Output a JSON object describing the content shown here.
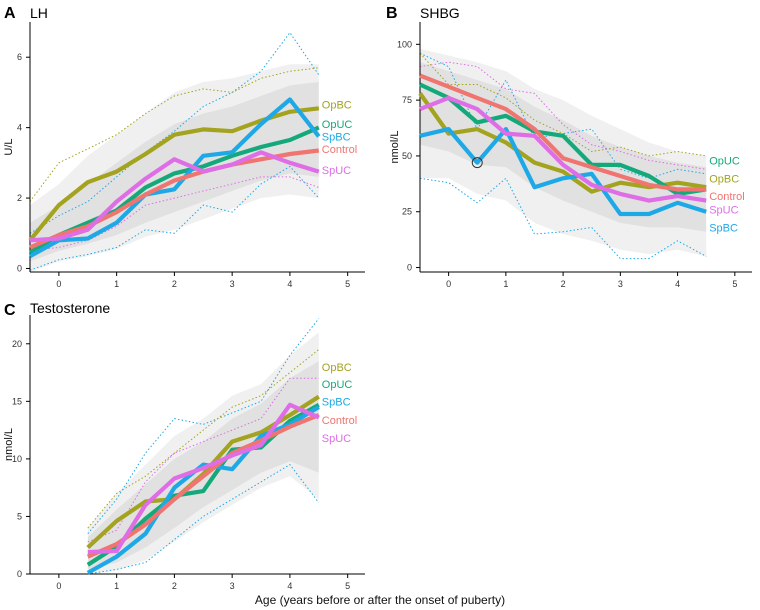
{
  "figure": {
    "xlabel": "Age (years before or after the onset of puberty)"
  },
  "colors": {
    "OpBC": "#a3a31f",
    "OpUC": "#14a97a",
    "SpBC": "#1ea9e6",
    "Control": "#f07470",
    "SpUC": "#de6de6"
  },
  "chart_data": [
    {
      "type": "line",
      "letter": "A",
      "title": "LH",
      "ylabel": "U/L",
      "xlim": [
        -0.5,
        5.3
      ],
      "ylim": [
        -0.1,
        7.0
      ],
      "xticks": [
        0,
        1,
        2,
        3,
        4,
        5
      ],
      "yticks": [
        0,
        2,
        4,
        6
      ],
      "x": [
        -0.5,
        0,
        0.5,
        1,
        1.5,
        2,
        2.5,
        3,
        3.5,
        4,
        4.5
      ],
      "series": [
        {
          "name": "OpBC",
          "values": [
            0.8,
            1.8,
            2.45,
            2.75,
            3.25,
            3.8,
            3.95,
            3.9,
            4.2,
            4.45,
            4.55
          ]
        },
        {
          "name": "OpUC",
          "values": [
            0.45,
            0.95,
            1.3,
            1.65,
            2.3,
            2.7,
            2.9,
            3.2,
            3.45,
            3.65,
            4.0
          ]
        },
        {
          "name": "SpBC",
          "values": [
            0.35,
            0.8,
            0.85,
            1.3,
            2.1,
            2.25,
            3.2,
            3.3,
            4.1,
            4.8,
            3.75
          ]
        },
        {
          "name": "Control",
          "values": [
            0.6,
            0.95,
            1.2,
            1.6,
            2.1,
            2.5,
            2.75,
            2.95,
            3.1,
            3.25,
            3.35
          ]
        },
        {
          "name": "SpUC",
          "values": [
            0.8,
            0.85,
            1.1,
            1.9,
            2.55,
            3.1,
            2.75,
            2.95,
            3.3,
            3.0,
            2.75
          ]
        }
      ],
      "labels": [
        {
          "name": "OpBC",
          "text": "OpBC",
          "y": 4.65
        },
        {
          "name": "OpUC",
          "text": "OpUC",
          "y": 4.1
        },
        {
          "name": "SpBC",
          "text": "SpBC",
          "y": 3.75
        },
        {
          "name": "Control",
          "text": "Control",
          "y": 3.4
        },
        {
          "name": "SpUC",
          "text": "SpUC",
          "y": 2.8
        }
      ],
      "band": {
        "outer_upper": [
          1.8,
          2.4,
          3.2,
          3.8,
          4.4,
          5.0,
          5.3,
          5.4,
          5.6,
          5.8,
          5.8
        ],
        "outer_lower": [
          -0.1,
          0.2,
          0.35,
          0.55,
          0.9,
          1.1,
          1.4,
          1.7,
          2.0,
          2.1,
          2.0
        ],
        "inner_upper": [
          1.3,
          1.8,
          2.4,
          3.0,
          3.6,
          4.1,
          4.4,
          4.6,
          4.9,
          5.2,
          5.3
        ],
        "inner_lower": [
          0.2,
          0.5,
          0.7,
          0.95,
          1.3,
          1.6,
          1.9,
          2.2,
          2.5,
          2.7,
          2.6
        ],
        "dotted": [
          {
            "name": "OpBC",
            "values": [
              1.9,
              3.0,
              3.4,
              3.8,
              4.4,
              4.9,
              5.1,
              5.0,
              5.4,
              5.6,
              5.7
            ]
          },
          {
            "name": "SpBC",
            "values": [
              1.0,
              1.5,
              1.9,
              2.6,
              3.3,
              3.9,
              4.6,
              5.0,
              5.6,
              6.7,
              5.5
            ]
          },
          {
            "name": "SpBC",
            "values": [
              -0.05,
              0.25,
              0.4,
              0.6,
              1.1,
              1.0,
              1.8,
              1.6,
              2.4,
              2.9,
              2.0
            ]
          },
          {
            "name": "SpUC",
            "values": [
              0.5,
              0.6,
              0.8,
              1.2,
              1.8,
              2.0,
              2.2,
              2.4,
              2.6,
              2.6,
              2.3
            ]
          }
        ]
      }
    },
    {
      "type": "line",
      "letter": "B",
      "title": "SHBG",
      "ylabel": "nmol/L",
      "xlim": [
        -0.5,
        5.3
      ],
      "ylim": [
        -2,
        110
      ],
      "xticks": [
        0,
        1,
        2,
        3,
        4,
        5
      ],
      "yticks": [
        0,
        25,
        50,
        75,
        100
      ],
      "x": [
        -0.5,
        0,
        0.5,
        1,
        1.5,
        2,
        2.5,
        3,
        3.5,
        4,
        4.5
      ],
      "series": [
        {
          "name": "OpBC",
          "values": [
            78,
            60,
            62,
            56,
            47,
            43,
            34,
            38,
            36,
            38,
            36
          ]
        },
        {
          "name": "OpUC",
          "values": [
            82,
            76,
            65,
            68,
            61,
            59,
            46,
            46,
            41,
            33,
            35
          ]
        },
        {
          "name": "SpBC",
          "values": [
            59,
            62,
            47,
            62,
            36,
            40,
            42,
            24,
            24,
            29,
            25
          ]
        },
        {
          "name": "Control",
          "values": [
            86,
            81,
            76,
            71,
            62,
            49,
            45,
            41,
            37,
            35,
            35
          ]
        },
        {
          "name": "SpUC",
          "values": [
            71,
            76,
            71,
            60,
            59,
            46,
            37,
            33,
            30,
            32,
            30
          ]
        }
      ],
      "labels": [
        {
          "name": "OpUC",
          "text": "OpUC",
          "y": 48
        },
        {
          "name": "OpBC",
          "text": "OpBC",
          "y": 40
        },
        {
          "name": "Control",
          "text": "Control",
          "y": 32
        },
        {
          "name": "SpUC",
          "text": "SpUC",
          "y": 26
        },
        {
          "name": "SpBC",
          "text": "SpBC",
          "y": 18
        }
      ],
      "marker": {
        "x": 0.5,
        "y": 47
      },
      "band": {
        "outer_upper": [
          98,
          95,
          92,
          88,
          80,
          75,
          68,
          62,
          56,
          52,
          50
        ],
        "outer_lower": [
          40,
          40,
          33,
          30,
          20,
          15,
          12,
          8,
          6,
          8,
          5
        ],
        "inner_upper": [
          92,
          88,
          84,
          80,
          72,
          66,
          59,
          54,
          50,
          47,
          45
        ],
        "inner_lower": [
          55,
          52,
          46,
          45,
          36,
          30,
          25,
          20,
          18,
          18,
          16
        ],
        "dotted": [
          {
            "name": "SpBC",
            "values": [
              96,
              90,
              62,
              84,
              58,
              60,
              62,
              44,
              40,
              44,
              42
            ]
          },
          {
            "name": "SpBC",
            "values": [
              40,
              38,
              29,
              40,
              15,
              16,
              18,
              4,
              4,
              12,
              5
            ]
          },
          {
            "name": "OpBC",
            "values": [
              96,
              82,
              82,
              76,
              66,
              60,
              52,
              54,
              50,
              52,
              50
            ]
          },
          {
            "name": "SpUC",
            "values": [
              90,
              92,
              90,
              80,
              78,
              64,
              55,
              52,
              48,
              46,
              44
            ]
          }
        ]
      }
    },
    {
      "type": "line",
      "letter": "C",
      "title": "Testosterone",
      "ylabel": "nmol/L",
      "xlim": [
        -0.5,
        5.3
      ],
      "ylim": [
        0,
        22.5
      ],
      "xticks": [
        0,
        1,
        2,
        3,
        4,
        5
      ],
      "yticks": [
        0,
        5,
        10,
        15,
        20
      ],
      "x": [
        0.5,
        1,
        1.5,
        2,
        2.5,
        3,
        3.5,
        4,
        4.5
      ],
      "series": [
        {
          "name": "OpBC",
          "values": [
            2.3,
            4.6,
            6.3,
            6.5,
            8.7,
            11.5,
            12.3,
            13.8,
            15.4
          ]
        },
        {
          "name": "OpUC",
          "values": [
            0.8,
            2.4,
            4.8,
            6.8,
            7.2,
            10.8,
            11.0,
            13.3,
            14.7
          ]
        },
        {
          "name": "SpBC",
          "values": [
            0.1,
            1.5,
            3.5,
            7.5,
            9.5,
            9.1,
            12.0,
            13.0,
            14.5
          ]
        },
        {
          "name": "Control",
          "values": [
            1.5,
            2.6,
            4.3,
            6.5,
            8.5,
            10.5,
            11.6,
            12.8,
            13.8
          ]
        },
        {
          "name": "SpUC",
          "values": [
            1.9,
            2.0,
            6.0,
            8.3,
            9.2,
            10.3,
            11.2,
            14.7,
            13.6
          ]
        }
      ],
      "labels": [
        {
          "name": "OpBC",
          "text": "OpBC",
          "y": 18.0
        },
        {
          "name": "OpUC",
          "text": "OpUC",
          "y": 16.5
        },
        {
          "name": "SpBC",
          "text": "SpBC",
          "y": 15.0
        },
        {
          "name": "Control",
          "text": "Control",
          "y": 13.4
        },
        {
          "name": "SpUC",
          "text": "SpUC",
          "y": 11.8
        }
      ],
      "band": {
        "outer_upper": [
          4.0,
          7.0,
          9.5,
          12.0,
          13.5,
          15.5,
          16.5,
          19.0,
          21.0
        ],
        "outer_lower": [
          0.0,
          0.3,
          1.2,
          2.8,
          4.5,
          6.0,
          7.5,
          8.5,
          6.5
        ],
        "inner_upper": [
          3.2,
          5.6,
          7.8,
          10.0,
          11.5,
          13.5,
          14.8,
          17.0,
          18.5
        ],
        "inner_lower": [
          0.4,
          1.0,
          2.3,
          4.0,
          5.8,
          7.3,
          8.8,
          9.8,
          8.8
        ],
        "dotted": [
          {
            "name": "SpBC",
            "values": [
              3.5,
              6.5,
              10.5,
              13.5,
              13.0,
              14.0,
              15.0,
              19.0,
              22.2
            ]
          },
          {
            "name": "SpBC",
            "values": [
              0.0,
              0.4,
              1.0,
              3.0,
              5.0,
              6.5,
              8.0,
              9.5,
              6.2
            ]
          },
          {
            "name": "OpBC",
            "values": [
              4.0,
              7.0,
              8.5,
              10.5,
              12.5,
              14.5,
              15.5,
              17.5,
              19.5
            ]
          },
          {
            "name": "SpUC",
            "values": [
              2.8,
              3.8,
              8.0,
              10.5,
              11.5,
              12.5,
              13.5,
              17.0,
              17.0
            ]
          }
        ]
      }
    }
  ]
}
